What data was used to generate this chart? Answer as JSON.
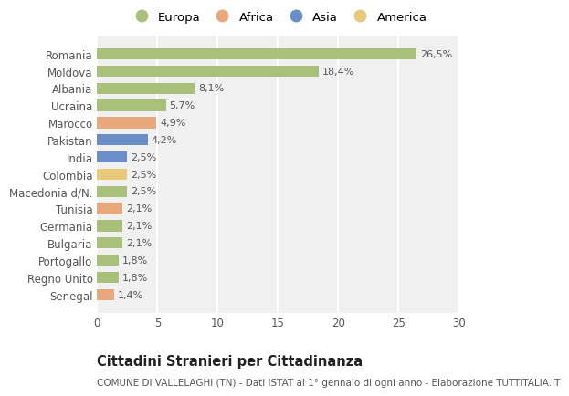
{
  "categories": [
    "Romania",
    "Moldova",
    "Albania",
    "Ucraina",
    "Marocco",
    "Pakistan",
    "India",
    "Colombia",
    "Macedonia d/N.",
    "Tunisia",
    "Germania",
    "Bulgaria",
    "Portogallo",
    "Regno Unito",
    "Senegal"
  ],
  "values": [
    26.5,
    18.4,
    8.1,
    5.7,
    4.9,
    4.2,
    2.5,
    2.5,
    2.5,
    2.1,
    2.1,
    2.1,
    1.8,
    1.8,
    1.4
  ],
  "labels": [
    "26,5%",
    "18,4%",
    "8,1%",
    "5,7%",
    "4,9%",
    "4,2%",
    "2,5%",
    "2,5%",
    "2,5%",
    "2,1%",
    "2,1%",
    "2,1%",
    "1,8%",
    "1,8%",
    "1,4%"
  ],
  "continents": [
    "Europa",
    "Europa",
    "Europa",
    "Europa",
    "Africa",
    "Asia",
    "Asia",
    "America",
    "Europa",
    "Africa",
    "Europa",
    "Europa",
    "Europa",
    "Europa",
    "Africa"
  ],
  "continent_colors": {
    "Europa": "#a8c07a",
    "Africa": "#e8a87c",
    "Asia": "#6b8ec7",
    "America": "#e8c97a"
  },
  "legend_order": [
    "Europa",
    "Africa",
    "Asia",
    "America"
  ],
  "title": "Cittadini Stranieri per Cittadinanza",
  "subtitle": "COMUNE DI VALLELAGHI (TN) - Dati ISTAT al 1° gennaio di ogni anno - Elaborazione TUTTITALIA.IT",
  "xlim": [
    0,
    30
  ],
  "xticks": [
    0,
    5,
    10,
    15,
    20,
    25,
    30
  ],
  "background_color": "#ffffff",
  "plot_bg_color": "#f0f0f0",
  "grid_color": "#ffffff",
  "bar_height": 0.65,
  "title_fontsize": 10.5,
  "subtitle_fontsize": 7.5,
  "tick_fontsize": 8.5,
  "label_fontsize": 8,
  "legend_fontsize": 9.5
}
